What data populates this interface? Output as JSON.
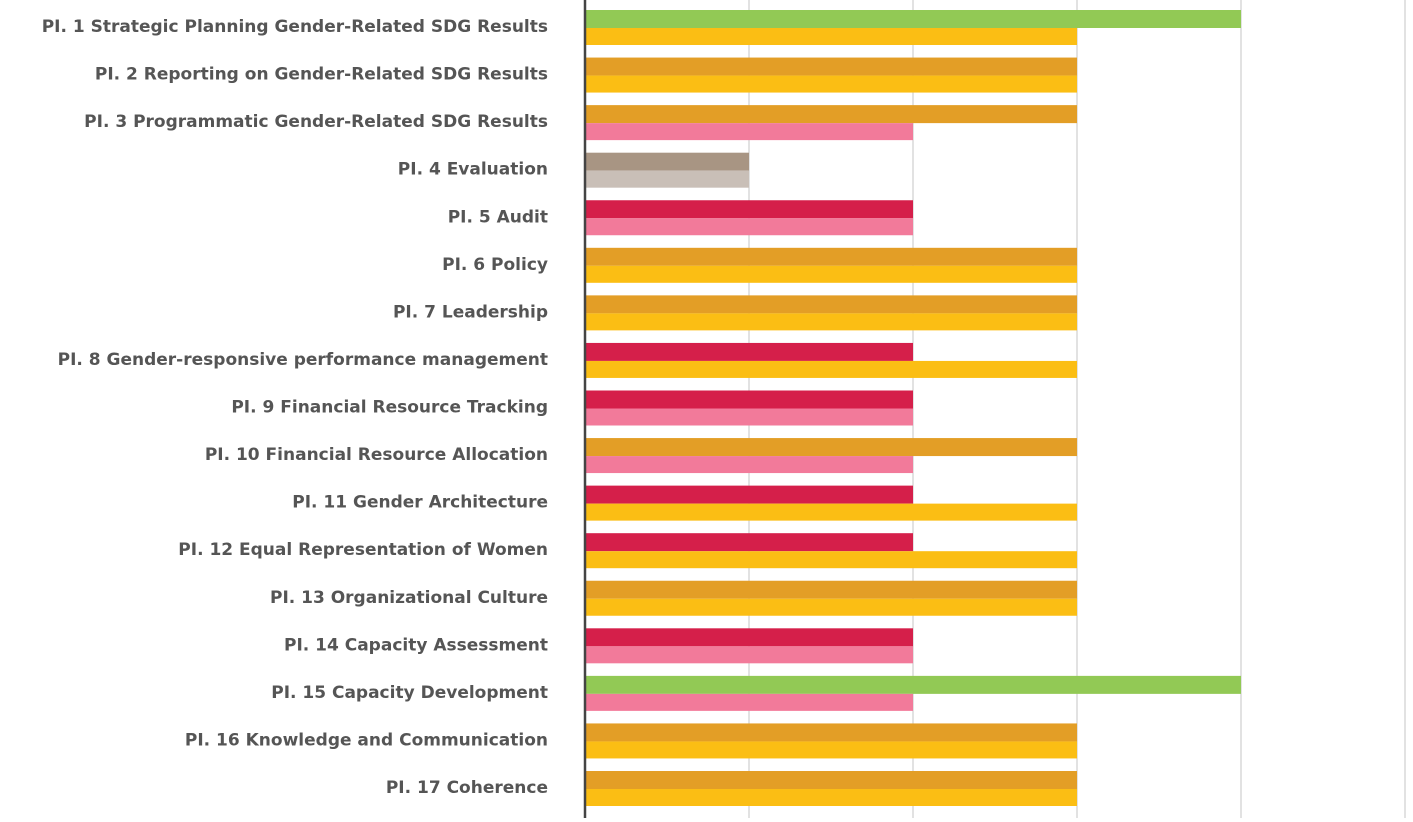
{
  "chart_data": {
    "type": "hbar",
    "categories": [
      "PI. 1 Strategic Planning Gender-Related SDG Results",
      "PI. 2 Reporting on Gender-Related SDG Results",
      "PI. 3 Programmatic Gender-Related SDG Results",
      "PI. 4 Evaluation",
      "PI. 5 Audit",
      "PI. 6 Policy",
      "PI. 7 Leadership",
      "PI. 8  Gender-responsive performance management",
      "PI. 9 Financial Resource Tracking",
      "PI. 10 Financial Resource Allocation",
      "PI. 11 Gender Architecture",
      "PI. 12 Equal Representation of Women",
      "PI. 13 Organizational Culture",
      "PI. 14 Capacity Assessment",
      "PI. 15 Capacity Development",
      "PI. 16 Knowledge and Communication",
      "PI. 17 Coherence"
    ],
    "series": [
      {
        "values": [
          4,
          3,
          3,
          1,
          2,
          3,
          3,
          2,
          2,
          3,
          2,
          2,
          3,
          2,
          4,
          3,
          3
        ],
        "colors": [
          "#92c955",
          "#e39e26",
          "#e39e26",
          "#a89583",
          "#d51f4a",
          "#e39e26",
          "#e39e26",
          "#d51f4a",
          "#d51f4a",
          "#e39e26",
          "#d51f4a",
          "#d51f4a",
          "#e39e26",
          "#d51f4a",
          "#92c955",
          "#e39e26",
          "#e39e26"
        ]
      },
      {
        "values": [
          3,
          3,
          2,
          1,
          2,
          3,
          3,
          3,
          2,
          2,
          3,
          3,
          3,
          2,
          2,
          3,
          3
        ],
        "colors": [
          "#fbbe14",
          "#fbbe14",
          "#f27a9a",
          "#c9bfb7",
          "#f27a9a",
          "#fbbe14",
          "#fbbe14",
          "#fbbe14",
          "#f27a9a",
          "#f27a9a",
          "#fbbe14",
          "#fbbe14",
          "#fbbe14",
          "#f27a9a",
          "#f27a9a",
          "#fbbe14",
          "#fbbe14"
        ]
      }
    ],
    "xlim": [
      0,
      5
    ],
    "xticks": [
      0,
      1,
      2,
      3,
      4,
      5
    ],
    "grid": true
  }
}
